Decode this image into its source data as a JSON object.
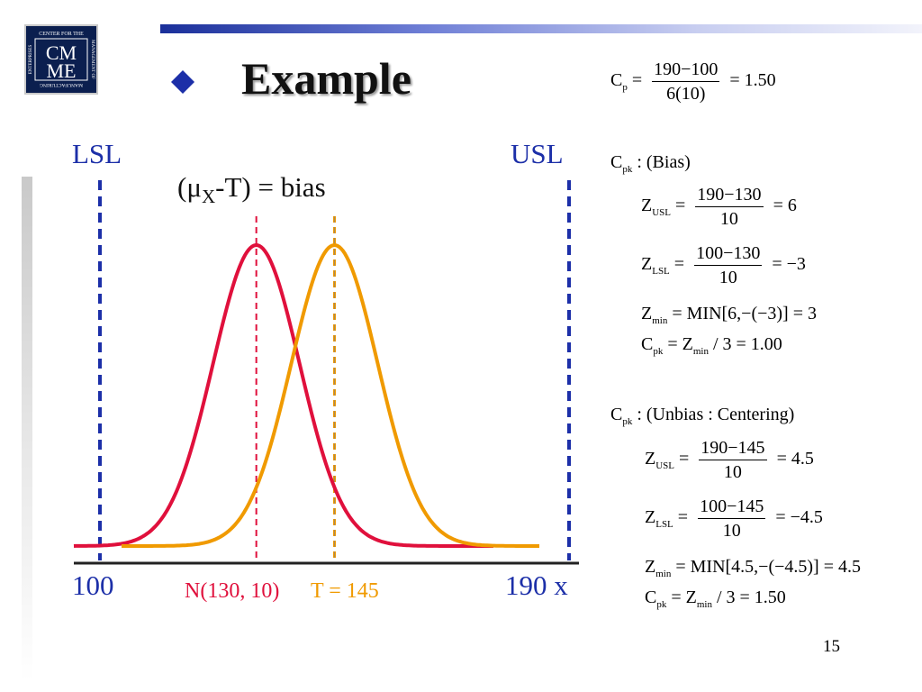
{
  "header": {
    "logo_text": {
      "top": "CENTER FOR THE",
      "line1": "CM",
      "line2": "ME",
      "bottom": "MANUFACTURING",
      "left": "ENTERPRISES",
      "right": "MANAGEMENT OF"
    },
    "title": "Example",
    "accent_color": "#1c2fa8"
  },
  "chart": {
    "lsl_label": "LSL",
    "usl_label": "USL",
    "bias_label": {
      "open": "(μ",
      "sub": "X",
      "rest": "-T) = bias"
    },
    "x_min_label": "100",
    "x_max_label": "190 x",
    "mean_label": "N(130, 10)",
    "target_label": "T = 145",
    "colors": {
      "spec_lines": "#1c2fa8",
      "mean_curve": "#e0103c",
      "target_curve": "#f09a00"
    }
  },
  "chart_data": {
    "type": "line",
    "x": [
      100,
      110,
      120,
      130,
      140,
      150,
      160,
      170,
      180,
      190
    ],
    "series": [
      {
        "name": "N(130, 10)",
        "mean": 130,
        "sd": 10
      },
      {
        "name": "T = 145",
        "mean": 145,
        "sd": 10
      }
    ],
    "lsl": 100,
    "usl": 190,
    "target": 145,
    "xlim": [
      100,
      190
    ]
  },
  "equations": {
    "cp": {
      "lhs": "C",
      "lhs_sub": "p",
      "num": "190−100",
      "den": "6(10)",
      "result": "= 1.50"
    },
    "bias": {
      "heading": {
        "sym": "C",
        "sub": "pk",
        "text": ": (Bias)"
      },
      "z_usl": {
        "lhs": "Z",
        "sub": "USL",
        "num": "190−130",
        "den": "10",
        "result": "= 6"
      },
      "z_lsl": {
        "lhs": "Z",
        "sub": "LSL",
        "num": "100−130",
        "den": "10",
        "result": "= −3"
      },
      "z_min": {
        "lhs": "Z",
        "sub": "min",
        "rhs": "= MIN[6,−(−3)] = 3"
      },
      "cpk": {
        "lhs": "C",
        "sub": "pk",
        "mid": "= Z",
        "mid_sub": "min",
        "rhs": "/ 3 = 1.00"
      }
    },
    "unbias": {
      "heading": {
        "sym": "C",
        "sub": "pk",
        "text": ": (Unbias : Centering)"
      },
      "z_usl": {
        "lhs": "Z",
        "sub": "USL",
        "num": "190−145",
        "den": "10",
        "result": "= 4.5"
      },
      "z_lsl": {
        "lhs": "Z",
        "sub": "LSL",
        "num": "100−145",
        "den": "10",
        "result": "= −4.5"
      },
      "z_min": {
        "lhs": "Z",
        "sub": "min",
        "rhs": "= MIN[4.5,−(−4.5)] = 4.5"
      },
      "cpk": {
        "lhs": "C",
        "sub": "pk",
        "mid": "= Z",
        "mid_sub": "min",
        "rhs": "/ 3 = 1.50"
      }
    }
  },
  "page_number": "15"
}
